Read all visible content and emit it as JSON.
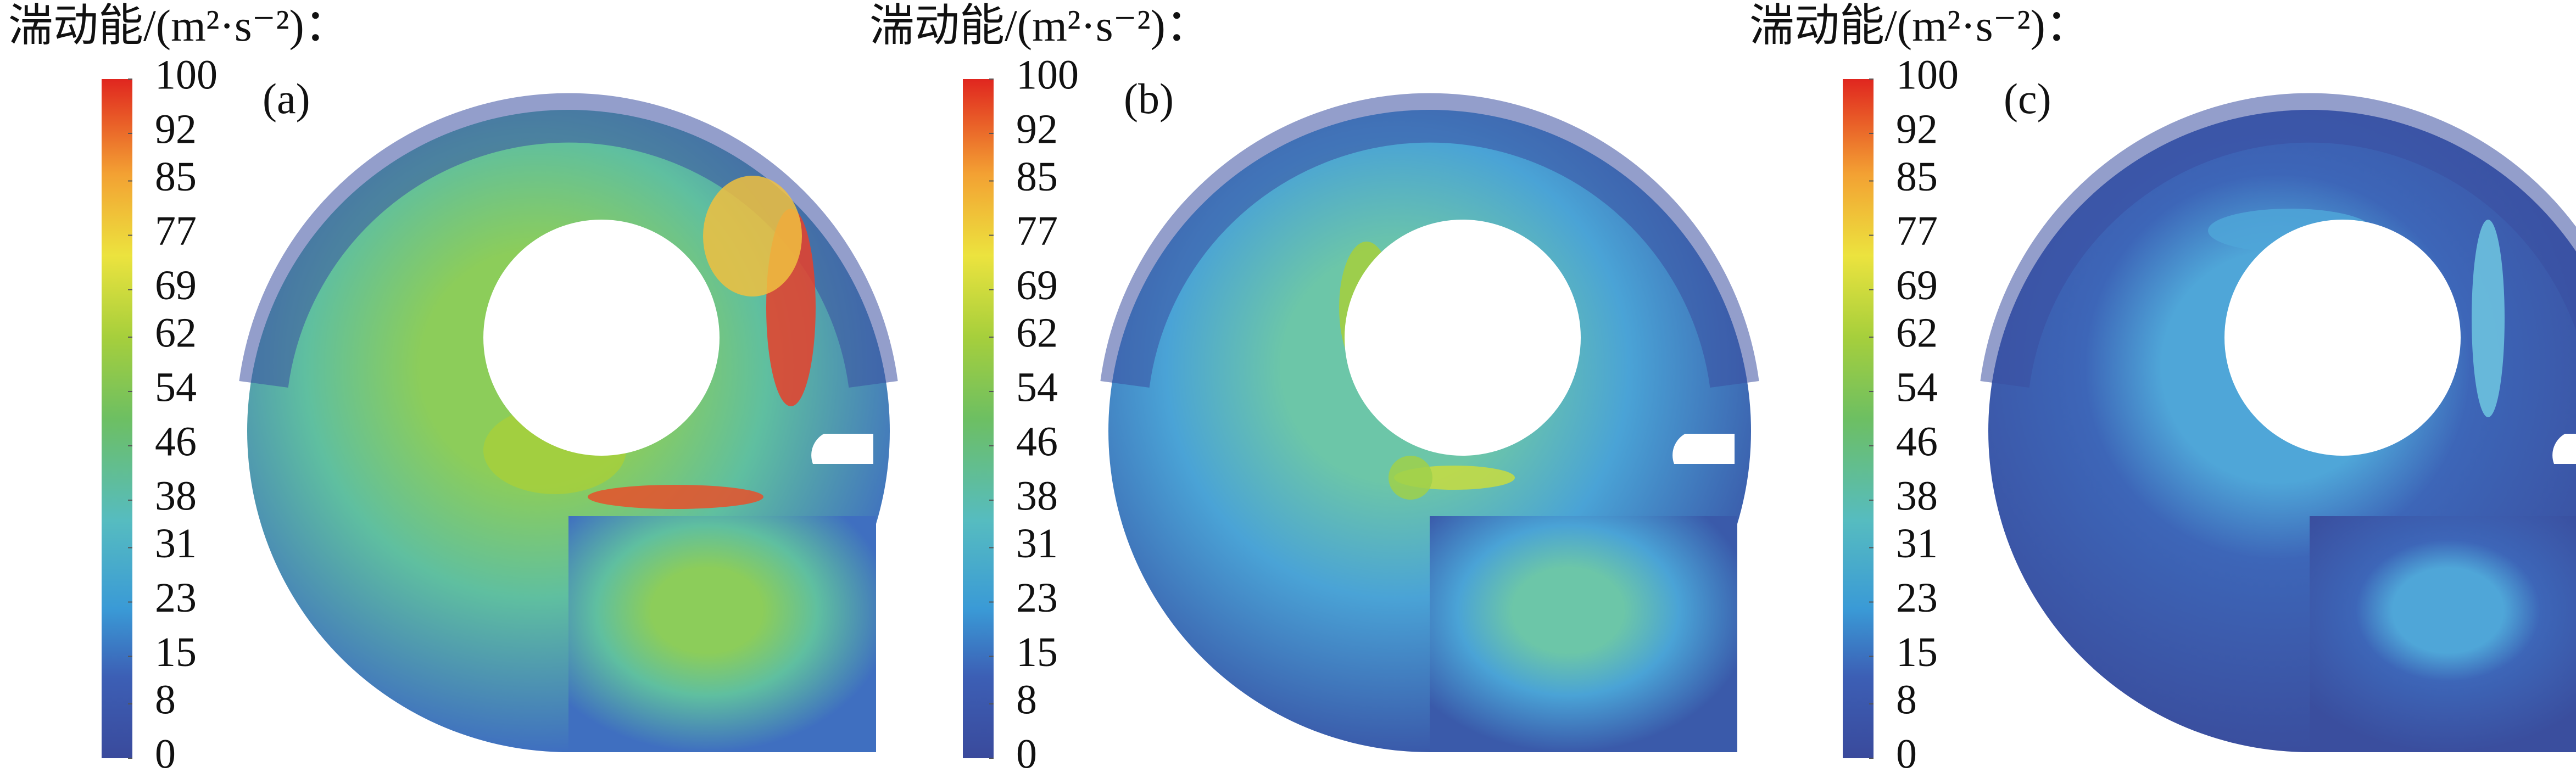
{
  "panels": [
    {
      "label": "(a)",
      "colorbar_title": "湍动能/(m²·s⁻²)：",
      "colorbar_range": [
        0,
        100
      ],
      "colorbar_ticks": [
        0,
        8,
        15,
        23,
        31,
        38,
        46,
        54,
        62,
        69,
        77,
        85,
        92,
        100
      ]
    },
    {
      "label": "(b)",
      "colorbar_title": "湍动能/(m²·s⁻²)：",
      "colorbar_range": [
        0,
        100
      ],
      "colorbar_ticks": [
        0,
        8,
        15,
        23,
        31,
        38,
        46,
        54,
        62,
        69,
        77,
        85,
        92,
        100
      ]
    },
    {
      "label": "(c)",
      "colorbar_title": "湍动能/(m²·s⁻²)：",
      "colorbar_range": [
        0,
        100
      ],
      "colorbar_ticks": [
        0,
        8,
        15,
        23,
        31,
        38,
        46,
        54,
        62,
        69,
        77,
        85,
        92,
        100
      ]
    }
  ]
}
